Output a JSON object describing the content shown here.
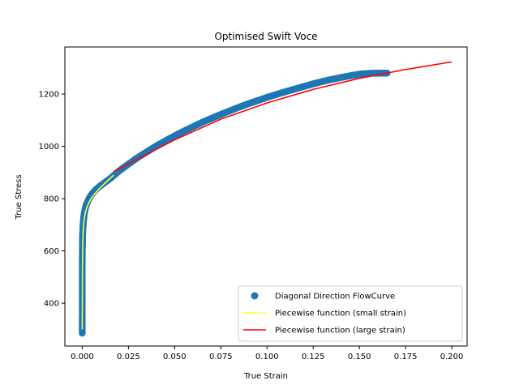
{
  "chart_data": {
    "type": "scatter",
    "title": "Optimised Swift Voce",
    "xlabel": "True Strain",
    "ylabel": "True Stress",
    "xlim": [
      -0.0094,
      0.2083
    ],
    "ylim": [
      236,
      1380
    ],
    "xticks": [
      0.0,
      0.025,
      0.05,
      0.075,
      0.1,
      0.125,
      0.15,
      0.175,
      0.2
    ],
    "xtick_labels": [
      "0.000",
      "0.025",
      "0.050",
      "0.075",
      "0.100",
      "0.125",
      "0.150",
      "0.175",
      "0.200"
    ],
    "yticks": [
      400,
      600,
      800,
      1000,
      1200
    ],
    "ytick_labels": [
      "400",
      "600",
      "800",
      "1000",
      "1200"
    ],
    "grid": false,
    "legend_position": "lower-right",
    "series": [
      {
        "name": "Diagonal Direction FlowCurve",
        "kind": "scatter",
        "color": "#1f77b4",
        "x": [
          0.0,
          0.0,
          0.0,
          0.0,
          0.0001,
          0.0002,
          0.0004,
          0.0006,
          0.0008,
          0.001,
          0.0015,
          0.002,
          0.003,
          0.004,
          0.005,
          0.007,
          0.01,
          0.015,
          0.02,
          0.025,
          0.03,
          0.035,
          0.04,
          0.045,
          0.05,
          0.055,
          0.06,
          0.065,
          0.07,
          0.075,
          0.08,
          0.085,
          0.09,
          0.095,
          0.1,
          0.105,
          0.11,
          0.115,
          0.12,
          0.125,
          0.13,
          0.135,
          0.14,
          0.145,
          0.15,
          0.155,
          0.16,
          0.165
        ],
        "y": [
          285,
          350,
          450,
          550,
          620,
          660,
          690,
          710,
          725,
          738,
          757,
          772,
          790,
          804,
          815,
          832,
          850,
          876,
          906,
          932,
          957,
          979,
          1001,
          1021,
          1040,
          1058,
          1075,
          1092,
          1107,
          1122,
          1136,
          1150,
          1163,
          1175,
          1187,
          1198,
          1209,
          1219,
          1229,
          1239,
          1248,
          1256,
          1263,
          1270,
          1276,
          1279,
          1280,
          1280
        ]
      },
      {
        "name": "Piecewise function (small strain)",
        "kind": "line",
        "color": "#ffff33",
        "x": [
          0.0,
          0.0001,
          0.0003,
          0.0006,
          0.001,
          0.0015,
          0.002,
          0.003,
          0.004,
          0.005,
          0.006,
          0.008,
          0.01,
          0.012,
          0.014,
          0.016,
          0.017
        ],
        "y": [
          300,
          540,
          640,
          690,
          720,
          740,
          755,
          775,
          790,
          802,
          812,
          828,
          843,
          857,
          870,
          883,
          890
        ]
      },
      {
        "name": "Piecewise function (large strain)",
        "kind": "line",
        "color": "#ff0000",
        "x": [
          0.017,
          0.025,
          0.05,
          0.075,
          0.1,
          0.125,
          0.15,
          0.175,
          0.2
        ],
        "y": [
          903,
          933,
          1025,
          1104,
          1166,
          1218,
          1260,
          1294,
          1323
        ]
      }
    ]
  }
}
